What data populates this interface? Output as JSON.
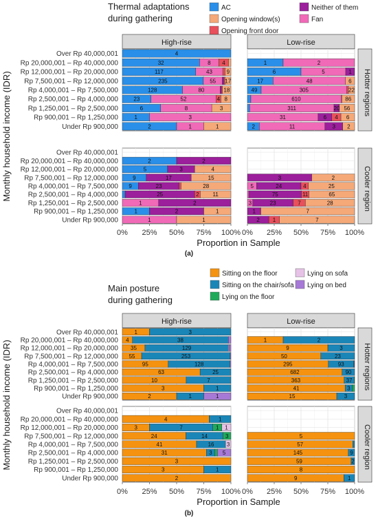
{
  "chart_data": [
    {
      "type": "bar",
      "orientation": "horizontal",
      "stacked": "percent",
      "caption": "(a)",
      "legend_title": "Thermal adaptations during gathering",
      "legend_title_lines": [
        "Thermal adaptations",
        "during gathering"
      ],
      "xlabel": "Proportion in Sample",
      "ylabel": "Monthly household income (IDR)",
      "xlim": [
        0,
        1
      ],
      "x_ticks": [
        "0%",
        "25%",
        "50%",
        "75%",
        "100%"
      ],
      "grid": true,
      "legend_position": "top",
      "facet_columns": [
        "High-rise",
        "Low-rise"
      ],
      "facet_rows": [
        "Hotter regions",
        "Cooler region"
      ],
      "categories": [
        "Over Rp 40,000,001",
        "Rp 20,000,001 – Rp 40,000,000",
        "Rp 12,000,001 – Rp 20,000,000",
        "Rp 7,500,001 – Rp 12,000,000",
        "Rp 4,000,001 – Rp 7,500,000",
        "Rp 2,500,001 – Rp 4,000,000",
        "Rp 1,250,001 – Rp 2,500,000",
        "Rp 900,001 – Rp 1,250,000",
        "Under Rp 900,000"
      ],
      "series": [
        {
          "name": "AC",
          "color": "#2a8fe8"
        },
        {
          "name": "Fan",
          "color": "#f06ab8"
        },
        {
          "name": "Neither of them",
          "color": "#9c1f9c"
        },
        {
          "name": "Opening front door",
          "color": "#e8505b"
        },
        {
          "name": "Opening window(s)",
          "color": "#f5a878"
        }
      ],
      "panels": [
        {
          "column": "High-rise",
          "row": "Hotter regions",
          "bars": [
            [
              4,
              0,
              0,
              0,
              0
            ],
            [
              32,
              8,
              0,
              4,
              1
            ],
            [
              117,
              43,
              0,
              4,
              9
            ],
            [
              235,
              55,
              5,
              3,
              17
            ],
            [
              128,
              80,
              3,
              2,
              18
            ],
            [
              23,
              52,
              0,
              4,
              8
            ],
            [
              6,
              8,
              0,
              0,
              3
            ],
            [
              1,
              3,
              0,
              0,
              0
            ],
            [
              2,
              1,
              0,
              0,
              1
            ]
          ]
        },
        {
          "column": "Low-rise",
          "row": "Hotter regions",
          "bars": [
            [
              0,
              0,
              0,
              0,
              0
            ],
            [
              1,
              2,
              0,
              0,
              0
            ],
            [
              6,
              5,
              1,
              0,
              0
            ],
            [
              17,
              48,
              0,
              0,
              6
            ],
            [
              49,
              305,
              0,
              6,
              22
            ],
            [
              23,
              610,
              0,
              3,
              86
            ],
            [
              8,
              311,
              20,
              0,
              56
            ],
            [
              0,
              31,
              6,
              4,
              6
            ],
            [
              2,
              11,
              3,
              0,
              2
            ]
          ]
        },
        {
          "column": "High-rise",
          "row": "Cooler region",
          "bars": [
            [
              0,
              0,
              0,
              0,
              0
            ],
            [
              2,
              0,
              2,
              0,
              0
            ],
            [
              5,
              0,
              3,
              0,
              4
            ],
            [
              9,
              0,
              17,
              0,
              15
            ],
            [
              9,
              0,
              23,
              1,
              28
            ],
            [
              1,
              0,
              25,
              2,
              11
            ],
            [
              0,
              1,
              2,
              0,
              0
            ],
            [
              1,
              0,
              2,
              0,
              1
            ],
            [
              0,
              1,
              0,
              0,
              1
            ]
          ]
        },
        {
          "column": "Low-rise",
          "row": "Cooler region",
          "bars": [
            [
              0,
              0,
              0,
              0,
              0
            ],
            [
              0,
              0,
              0,
              0,
              0
            ],
            [
              0,
              0,
              0,
              0,
              0
            ],
            [
              0,
              0,
              3,
              0,
              2
            ],
            [
              0,
              5,
              24,
              4,
              25
            ],
            [
              0,
              2,
              75,
              11,
              65
            ],
            [
              0,
              3,
              23,
              7,
              28
            ],
            [
              0,
              0,
              1,
              0,
              7
            ],
            [
              0,
              0,
              2,
              1,
              7
            ]
          ]
        }
      ]
    },
    {
      "type": "bar",
      "orientation": "horizontal",
      "stacked": "percent",
      "caption": "(b)",
      "legend_title": "Main posture during gathering",
      "legend_title_lines": [
        "Main posture",
        "during gathering"
      ],
      "xlabel": "Proportion in Sample",
      "ylabel": "Monthly household income (IDR)",
      "xlim": [
        0,
        1
      ],
      "x_ticks": [
        "0%",
        "25%",
        "50%",
        "75%",
        "100%"
      ],
      "grid": true,
      "legend_position": "top",
      "facet_columns": [
        "High-rise",
        "Low-rise"
      ],
      "facet_rows": [
        "Hotter regions",
        "Cooler region"
      ],
      "categories": [
        "Over Rp 40,000,001",
        "Rp 20,000,001 – Rp 40,000,000",
        "Rp 12,000,001 – Rp 20,000,000",
        "Rp 7,500,001 – Rp 12,000,000",
        "Rp 4,000,001 – Rp 7,500,000",
        "Rp 2,500,001 – Rp 4,000,000",
        "Rp 1,250,001 – Rp 2,500,000",
        "Rp 900,001 – Rp 1,250,000",
        "Under Rp 900,000"
      ],
      "series": [
        {
          "name": "Sitting on the floor",
          "color": "#f5920f"
        },
        {
          "name": "Sitting on the chair/sofa",
          "color": "#1a86b8"
        },
        {
          "name": "Lying on the floor",
          "color": "#1faa5a"
        },
        {
          "name": "Lying on sofa",
          "color": "#e6c3e6"
        },
        {
          "name": "Lying on bed",
          "color": "#a779d6"
        }
      ],
      "panels": [
        {
          "column": "High-rise",
          "row": "Hotter regions",
          "bars": [
            [
              1,
              3,
              0,
              0,
              0
            ],
            [
              4,
              38,
              0,
              0,
              1
            ],
            [
              35,
              129,
              0,
              1,
              3
            ],
            [
              55,
              253,
              0,
              0,
              2
            ],
            [
              95,
              128,
              0,
              0,
              2
            ],
            [
              63,
              25,
              0,
              0,
              0
            ],
            [
              10,
              7,
              0,
              0,
              0
            ],
            [
              3,
              1,
              0,
              0,
              0
            ],
            [
              2,
              1,
              0,
              0,
              1
            ]
          ]
        },
        {
          "column": "Low-rise",
          "row": "Hotter regions",
          "bars": [
            [
              0,
              0,
              0,
              0,
              0
            ],
            [
              1,
              2,
              0,
              0,
              0
            ],
            [
              9,
              3,
              0,
              0,
              0
            ],
            [
              50,
              23,
              0,
              0,
              0
            ],
            [
              295,
              93,
              1,
              0,
              2
            ],
            [
              682,
              90,
              0,
              0,
              0
            ],
            [
              363,
              37,
              2,
              0,
              0
            ],
            [
              41,
              3,
              1,
              0,
              0
            ],
            [
              15,
              3,
              0,
              0,
              0
            ]
          ]
        },
        {
          "column": "High-rise",
          "row": "Cooler region",
          "bars": [
            [
              0,
              0,
              0,
              0,
              0
            ],
            [
              4,
              1,
              0,
              0,
              0
            ],
            [
              3,
              7,
              1,
              1,
              0
            ],
            [
              24,
              14,
              3,
              0,
              0
            ],
            [
              41,
              16,
              0,
              3,
              0
            ],
            [
              31,
              3,
              1,
              0,
              5
            ],
            [
              3,
              0,
              0,
              0,
              0
            ],
            [
              3,
              1,
              0,
              0,
              0
            ],
            [
              2,
              0,
              0,
              0,
              0
            ]
          ]
        },
        {
          "column": "Low-rise",
          "row": "Cooler region",
          "bars": [
            [
              0,
              0,
              0,
              0,
              0
            ],
            [
              0,
              0,
              0,
              0,
              0
            ],
            [
              0,
              0,
              0,
              0,
              0
            ],
            [
              5,
              0,
              0,
              0,
              0
            ],
            [
              57,
              1,
              0,
              0,
              0
            ],
            [
              145,
              9,
              0,
              0,
              0
            ],
            [
              59,
              2,
              0,
              0,
              0
            ],
            [
              8,
              0,
              0,
              0,
              0
            ],
            [
              9,
              1,
              0,
              0,
              0
            ]
          ]
        }
      ]
    }
  ]
}
